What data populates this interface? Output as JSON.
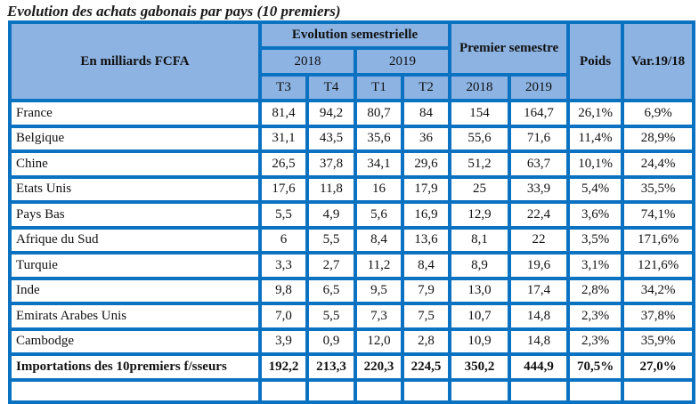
{
  "title": "Evolution des achats gabonais par pays (10 premiers)",
  "header": {
    "unit": "En milliards FCFA",
    "evolution": "Evolution semestrielle",
    "premier": "Premier semestre",
    "poids": "Poids",
    "var": "Var.19/18",
    "y2018": "2018",
    "y2019": "2019",
    "quarters": [
      "T3",
      "T4",
      "T1",
      "T2"
    ],
    "ps2018": "2018",
    "ps2019": "2019"
  },
  "rows": [
    [
      "France",
      "81,4",
      "94,2",
      "80,7",
      "84",
      "154",
      "164,7",
      "26,1%",
      "6,9%"
    ],
    [
      "Belgique",
      "31,1",
      "43,5",
      "35,6",
      "36",
      "55,6",
      "71,6",
      "11,4%",
      "28,9%"
    ],
    [
      "Chine",
      "26,5",
      "37,8",
      "34,1",
      "29,6",
      "51,2",
      "63,7",
      "10,1%",
      "24,4%"
    ],
    [
      "Etats Unis",
      "17,6",
      "11,8",
      "16",
      "17,9",
      "25",
      "33,9",
      "5,4%",
      "35,5%"
    ],
    [
      "Pays Bas",
      "5,5",
      "4,9",
      "5,6",
      "16,9",
      "12,9",
      "22,4",
      "3,6%",
      "74,1%"
    ],
    [
      "Afrique du Sud",
      "6",
      "5,5",
      "8,4",
      "13,6",
      "8,1",
      "22",
      "3,5%",
      "171,6%"
    ],
    [
      "Turquie",
      "3,3",
      "2,7",
      "11,2",
      "8,4",
      "8,9",
      "19,6",
      "3,1%",
      "121,6%"
    ],
    [
      "Inde",
      "9,8",
      "6,5",
      "9,5",
      "7,9",
      "13,0",
      "17,4",
      "2,8%",
      "34,2%"
    ],
    [
      "Emirats Arabes Unis",
      "7,0",
      "5,5",
      "7,3",
      "7,5",
      "10,7",
      "14,8",
      "2,3%",
      "37,8%"
    ],
    [
      "Cambodge",
      "3,9",
      "0,9",
      "12,0",
      "2,8",
      "10,9",
      "14,8",
      "2,3%",
      "35,9%"
    ]
  ],
  "total": [
    "Importations des 10premiers f/sseurs",
    "192,2",
    "213,3",
    "220,3",
    "224,5",
    "350,2",
    "444,9",
    "70,5%",
    "27,0%"
  ]
}
